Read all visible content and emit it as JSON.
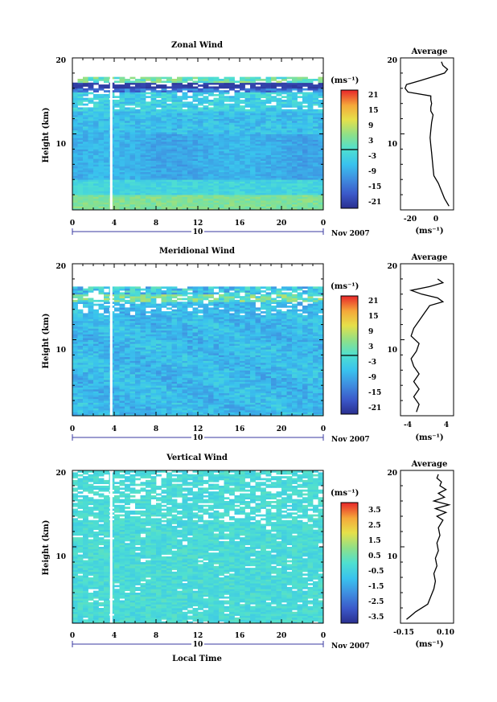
{
  "chart_data": [
    {
      "type": "heatmap",
      "title": "Zonal Wind",
      "ylabel": "Height (km)",
      "ylim": [
        0,
        20
      ],
      "yticks": [
        "20",
        "10"
      ],
      "xlim": [
        0,
        24
      ],
      "xticks": [
        "0",
        "4",
        "8",
        "12",
        "16",
        "20",
        "0"
      ],
      "date_tick": "10",
      "date_label": "Nov 2007",
      "colorbar": {
        "unit": "(ms⁻¹)",
        "ticks": [
          "21",
          "15",
          "9",
          "3",
          "-3",
          "-9",
          "-15",
          "-21"
        ],
        "range": [
          -24,
          24
        ]
      },
      "field": {
        "kind": "zonal",
        "data_top_km": 17.5
      },
      "profile": {
        "title": "Average",
        "xticks": [
          "-20",
          "0"
        ],
        "xrange": [
          -25,
          10
        ],
        "xlabel": "(ms⁻¹)",
        "yticks": [
          "20",
          "10"
        ],
        "heights_km": [
          0.5,
          1.5,
          2.5,
          3.5,
          4.5,
          5.5,
          6.5,
          7.5,
          8.5,
          9.5,
          10.5,
          11.5,
          12.5,
          13.0,
          13.5,
          14.0,
          14.5,
          15.0,
          15.5,
          16.0,
          16.5,
          17.0,
          17.5,
          18.0,
          18.5,
          19.0,
          19.5
        ],
        "values": [
          7,
          4,
          2,
          0,
          -3,
          -3.5,
          -4,
          -4.5,
          -5,
          -5.5,
          -5,
          -4.5,
          -3.5,
          -5,
          -5,
          -4.5,
          -5,
          -5,
          -20,
          -22,
          -21,
          -12,
          -4,
          4,
          6,
          3,
          2
        ]
      }
    },
    {
      "type": "heatmap",
      "title": "Meridional Wind",
      "ylabel": "Height (km)",
      "ylim": [
        0,
        20
      ],
      "yticks": [
        "20",
        "10"
      ],
      "xlim": [
        0,
        24
      ],
      "xticks": [
        "0",
        "4",
        "8",
        "12",
        "16",
        "20",
        "0"
      ],
      "date_tick": "10",
      "date_label": "Nov 2007",
      "colorbar": {
        "unit": "(ms⁻¹)",
        "ticks": [
          "21",
          "15",
          "9",
          "3",
          "-3",
          "-9",
          "-15",
          "-21"
        ],
        "range": [
          -24,
          24
        ]
      },
      "field": {
        "kind": "meridional",
        "data_top_km": 17.0
      },
      "profile": {
        "title": "Average",
        "xticks": [
          "-4",
          "4"
        ],
        "xrange": [
          -5,
          5
        ],
        "xlabel": "(ms⁻¹)",
        "yticks": [
          "20",
          "10"
        ],
        "heights_km": [
          0.5,
          1.5,
          2.5,
          3.5,
          4.5,
          5.5,
          6.5,
          7.5,
          8.5,
          9.5,
          10.5,
          11.5,
          12.5,
          13.0,
          13.5,
          14.0,
          14.5,
          15.0,
          15.5,
          16.0,
          16.5,
          17.0,
          17.5,
          18.0
        ],
        "values": [
          -2,
          -1.5,
          -2.5,
          -1.5,
          -2.5,
          -1.5,
          -2.5,
          -3,
          -2,
          -1.5,
          -3,
          -2.5,
          -1.5,
          -1,
          -0.5,
          0,
          0.5,
          3,
          2,
          -1,
          -3,
          0.5,
          3,
          2
        ]
      }
    },
    {
      "type": "heatmap",
      "title": "Vertical Wind",
      "ylabel": "Height (km)",
      "xlabel": "Local Time",
      "ylim": [
        0,
        20
      ],
      "yticks": [
        "20",
        "10"
      ],
      "xlim": [
        0,
        24
      ],
      "xticks": [
        "0",
        "4",
        "8",
        "12",
        "16",
        "20",
        "0"
      ],
      "date_tick": "10",
      "date_label": "Nov 2007",
      "colorbar": {
        "unit": "(ms⁻¹)",
        "ticks": [
          "3.5",
          "2.5",
          "1.5",
          "0.5",
          "-0.5",
          "-1.5",
          "-2.5",
          "-3.5"
        ],
        "range": [
          -4,
          4
        ]
      },
      "field": {
        "kind": "vertical",
        "data_top_km": 20
      },
      "profile": {
        "title": "Average",
        "xticks": [
          "-0.15",
          "0.10"
        ],
        "xrange": [
          -0.2,
          0.15
        ],
        "xlabel": "(ms⁻¹)",
        "yticks": [
          "20",
          "10"
        ],
        "heights_km": [
          0.5,
          1.5,
          2.5,
          3.5,
          4.5,
          5.5,
          6.5,
          7.5,
          8.5,
          9.5,
          10.5,
          11.5,
          12.5,
          13.5,
          14.0,
          14.5,
          15.0,
          15.5,
          16.0,
          16.5,
          17.0,
          17.5,
          18.0,
          18.5,
          19.0,
          19.5
        ],
        "values": [
          -0.16,
          -0.1,
          -0.02,
          0.0,
          0.02,
          0.03,
          0.02,
          0.04,
          0.03,
          0.05,
          0.04,
          0.06,
          0.05,
          0.08,
          0.04,
          0.1,
          0.03,
          0.12,
          0.02,
          0.09,
          0.05,
          0.1,
          0.06,
          0.07,
          0.04,
          0.05
        ]
      }
    }
  ]
}
